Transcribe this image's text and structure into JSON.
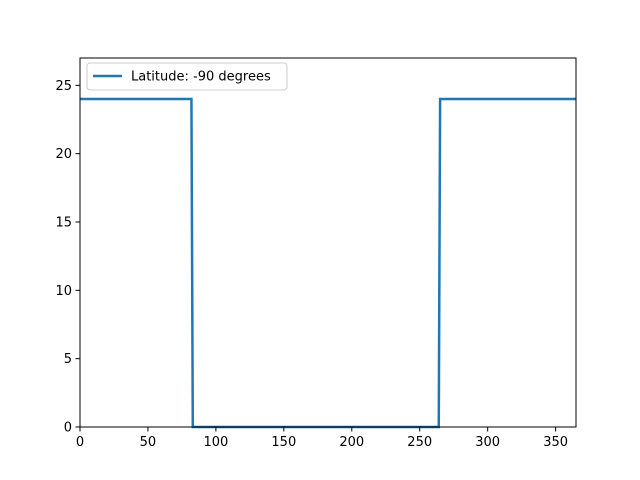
{
  "chart_data": {
    "type": "line",
    "title": "",
    "xlabel": "",
    "ylabel": "",
    "xlim": [
      0,
      365
    ],
    "ylim": [
      0,
      27
    ],
    "x_ticks": [
      0,
      50,
      100,
      150,
      200,
      250,
      300,
      350
    ],
    "y_ticks": [
      0,
      5,
      10,
      15,
      20,
      25
    ],
    "grid": false,
    "legend_position": "top-left",
    "series": [
      {
        "name": "Latitude: -90 degrees",
        "color": "#1f77b4",
        "x": [
          0,
          82,
          83,
          264,
          265,
          365
        ],
        "y": [
          24,
          24,
          0,
          0,
          24,
          24
        ]
      }
    ]
  }
}
